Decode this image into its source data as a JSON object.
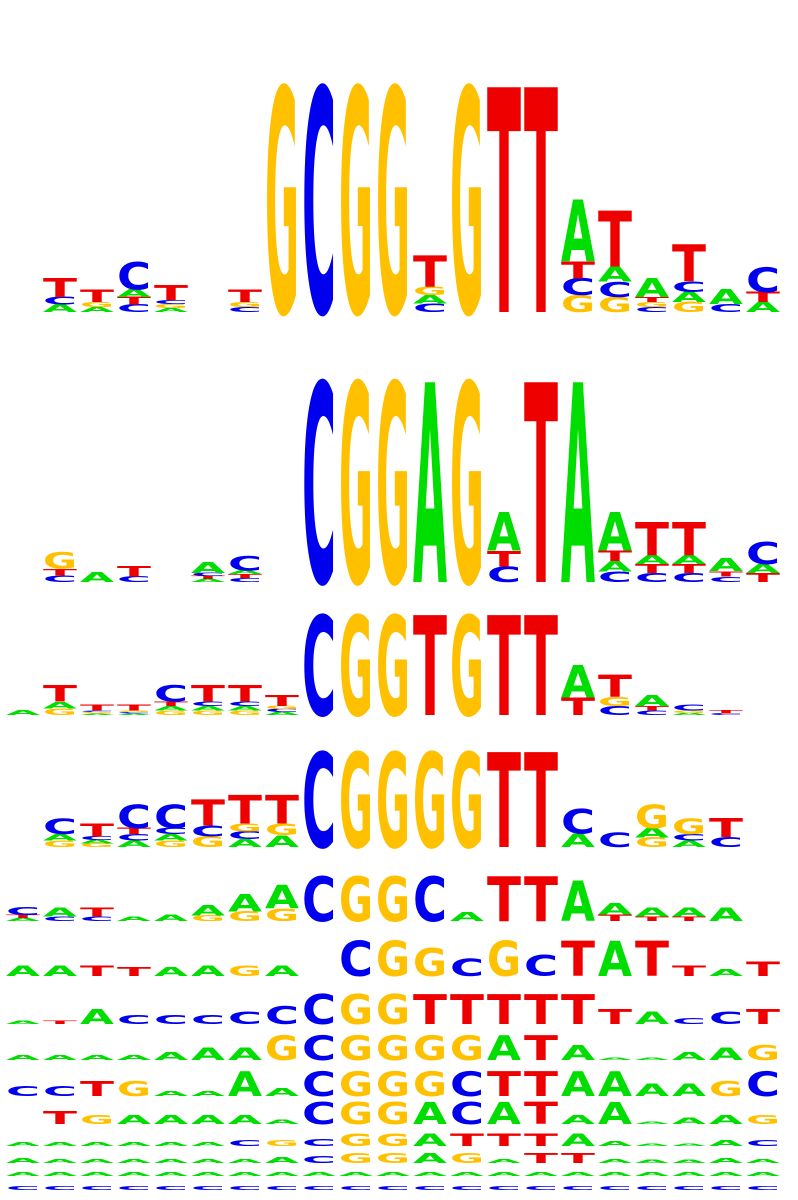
{
  "chart_data": {
    "type": "sequence_logo_stack",
    "alphabet": [
      "A",
      "C",
      "G",
      "T"
    ],
    "colors": {
      "A": "#00dd00",
      "C": "#0000ee",
      "G": "#ffc000",
      "T": "#ee0000"
    },
    "column_count": 21,
    "logos": [
      {
        "index": 1,
        "columns": [
          "",
          "ACT",
          "AGT",
          "CTAC",
          "AGCT",
          "",
          "CGT",
          "G",
          "C",
          "G",
          "G",
          "CAGT",
          "G",
          "T",
          "T",
          "GCTA",
          "GCAT",
          "CGTA",
          "GACT",
          "CA",
          "ATC"
        ]
      },
      {
        "index": 2,
        "columns": [
          "ACGT",
          "CTG",
          "A",
          "CT",
          "",
          "ATCA",
          "CTAC",
          "",
          "C",
          "G",
          "G",
          "A",
          "G",
          "CTA",
          "T",
          "A",
          "CATA",
          "CTAT",
          "CTAT",
          "CTA",
          "TAC"
        ]
      },
      {
        "index": 3,
        "columns": [
          "A",
          "GAT",
          "AGCT",
          "ACGT",
          "GATC",
          "GACT",
          "GACT",
          "ACGT",
          "C",
          "G",
          "G",
          "T",
          "G",
          "T",
          "T",
          "TA",
          "CGT",
          "CTA",
          "AGC",
          "CT",
          ""
        ]
      },
      {
        "index": 4,
        "columns": [
          "",
          "GAC",
          "GACT",
          "ACTC",
          "GACC",
          "GCT",
          "ACGT",
          "AGT",
          "C",
          "G",
          "G",
          "G",
          "G",
          "T",
          "T",
          "AC",
          "C",
          "GAG",
          "ACG",
          "CT",
          ""
        ]
      },
      {
        "index": 5,
        "columns": [
          "ATC",
          "CA",
          "CT",
          "A",
          "A",
          "GA",
          "GA",
          "GA",
          "C",
          "G",
          "G",
          "C",
          "A",
          "T",
          "T",
          "A",
          "TA",
          "TA",
          "TA",
          "A",
          ""
        ]
      },
      {
        "index": 6,
        "columns": [
          "A",
          "A",
          "T",
          "T",
          "A",
          "A",
          "G",
          "A",
          "",
          "C",
          "G",
          "G",
          "C",
          "G",
          "C",
          "T",
          "A",
          "T",
          "T",
          "A",
          "T"
        ]
      },
      {
        "index": 7,
        "columns": [
          "A",
          "T",
          "A",
          "C",
          "C",
          "C",
          "C",
          "C",
          "C",
          "G",
          "G",
          "T",
          "T",
          "T",
          "T",
          "T",
          "T",
          "A",
          "C",
          "C",
          "T"
        ]
      },
      {
        "index": 8,
        "columns": [
          "A",
          "A",
          "A",
          "A",
          "A",
          "A",
          "A",
          "G",
          "C",
          "G",
          "G",
          "G",
          "G",
          "A",
          "T",
          "A",
          "A",
          "A",
          "A",
          "A",
          "G"
        ]
      },
      {
        "index": 9,
        "columns": [
          "C",
          "C",
          "T",
          "G",
          "A",
          "A",
          "A",
          "A",
          "C",
          "G",
          "G",
          "G",
          "C",
          "T",
          "T",
          "A",
          "A",
          "A",
          "A",
          "G",
          "C"
        ]
      },
      {
        "index": 10,
        "columns": [
          "",
          "T",
          "G",
          "A",
          "A",
          "A",
          "A",
          "A",
          "C",
          "G",
          "G",
          "A",
          "C",
          "A",
          "T",
          "A",
          "A",
          "A",
          "A",
          "A",
          "G"
        ]
      },
      {
        "index": 11,
        "columns": [
          "A",
          "A",
          "A",
          "A",
          "A",
          "A",
          "C",
          "G",
          "C",
          "G",
          "G",
          "A",
          "T",
          "T",
          "T",
          "A",
          "A",
          "A",
          "A",
          "A",
          "C"
        ]
      },
      {
        "index": 12,
        "columns": [
          "A",
          "A",
          "A",
          "A",
          "A",
          "A",
          "A",
          "A",
          "C",
          "G",
          "G",
          "A",
          "G",
          "A",
          "T",
          "T",
          "A",
          "A",
          "A",
          "A",
          "A"
        ]
      },
      {
        "index": 13,
        "columns": [
          "A",
          "A",
          "A",
          "A",
          "A",
          "A",
          "A",
          "A",
          "A",
          "A",
          "A",
          "A",
          "A",
          "A",
          "A",
          "A",
          "A",
          "A",
          "A",
          "A",
          "A"
        ]
      },
      {
        "index": 14,
        "columns": [
          "C",
          "C",
          "C",
          "C",
          "C",
          "C",
          "C",
          "C",
          "C",
          "C",
          "C",
          "C",
          "C",
          "C",
          "C",
          "C",
          "C",
          "C",
          "C",
          "C",
          "C"
        ]
      }
    ]
  }
}
